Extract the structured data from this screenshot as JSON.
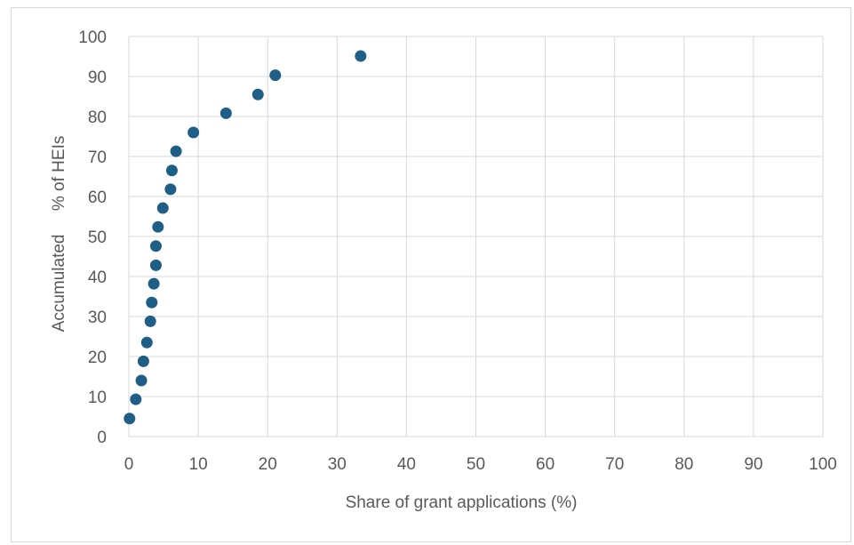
{
  "chart_data": {
    "type": "scatter",
    "title": "",
    "xlabel": "Share of grant applications (%)",
    "ylabel": "Accumulated     % of HEIs",
    "xlim": [
      0,
      100
    ],
    "ylim": [
      0,
      100
    ],
    "x_ticks": [
      "0",
      "10",
      "20",
      "30",
      "40",
      "50",
      "60",
      "70",
      "80",
      "90",
      "100"
    ],
    "y_ticks": [
      "0",
      "10",
      "20",
      "30",
      "40",
      "50",
      "60",
      "70",
      "80",
      "90",
      "100"
    ],
    "grid": true,
    "legend": "none",
    "marker_color": "#1f5f86",
    "gridline_color": "#d9d9d9",
    "points": [
      {
        "x": 0.1,
        "y": 4.5
      },
      {
        "x": 1.0,
        "y": 9.3
      },
      {
        "x": 1.8,
        "y": 14.0
      },
      {
        "x": 2.1,
        "y": 18.8
      },
      {
        "x": 2.6,
        "y": 23.5
      },
      {
        "x": 3.1,
        "y": 28.8
      },
      {
        "x": 3.3,
        "y": 33.5
      },
      {
        "x": 3.6,
        "y": 38.2
      },
      {
        "x": 3.9,
        "y": 42.8
      },
      {
        "x": 3.9,
        "y": 47.6
      },
      {
        "x": 4.2,
        "y": 52.4
      },
      {
        "x": 4.9,
        "y": 57.1
      },
      {
        "x": 6.0,
        "y": 61.8
      },
      {
        "x": 6.2,
        "y": 66.5
      },
      {
        "x": 6.8,
        "y": 71.3
      },
      {
        "x": 9.3,
        "y": 76.0
      },
      {
        "x": 14.0,
        "y": 80.8
      },
      {
        "x": 18.6,
        "y": 85.5
      },
      {
        "x": 21.1,
        "y": 90.3
      },
      {
        "x": 33.4,
        "y": 95.1
      }
    ]
  }
}
